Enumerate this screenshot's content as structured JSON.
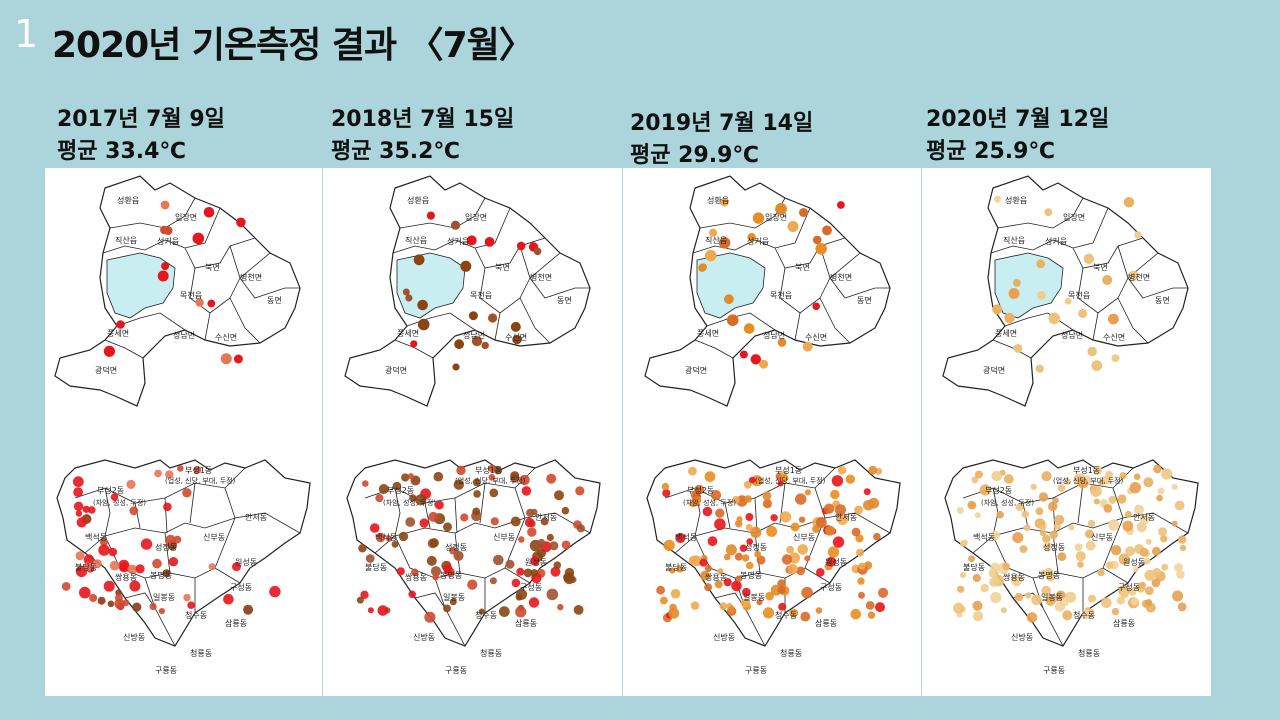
{
  "slide_number": "1",
  "title": "2020년 기온측정 결과 〈7월〉",
  "columns": [
    {
      "date": "2017년 7월 9일",
      "average": "평균 33.4℃",
      "palette": [
        "#e8151c",
        "#e8151c",
        "#d2492f",
        "#8b3a12",
        "#e8745a"
      ]
    },
    {
      "date": "2018년 7월 15일",
      "average": "평균 35.2℃",
      "palette": [
        "#8b4513",
        "#8b4513",
        "#a0522d",
        "#e8151c",
        "#d2492f"
      ]
    },
    {
      "date": "2019년 7월 14일",
      "average": "평균 29.9℃",
      "palette": [
        "#e08a2a",
        "#e88e20",
        "#d96a28",
        "#f0a850",
        "#e8151c"
      ]
    },
    {
      "date": "2020년 7월 12일",
      "average": "평균 25.9℃",
      "palette": [
        "#edc27a",
        "#f0cc8a",
        "#e8b060",
        "#f2d49c",
        "#e8a050"
      ]
    }
  ],
  "top_map_labels": [
    "성환읍",
    "입장면",
    "직산읍",
    "성거읍",
    "북면",
    "병천면",
    "목천읍",
    "동면",
    "풍세면",
    "성남면",
    "수신면",
    "광덕면"
  ],
  "bottom_map_labels": [
    "부성1동",
    "(업성, 신당, 부대, 두정)",
    "부성2동",
    "(차암, 성성, 두정)",
    "안서동",
    "백석동",
    "신부동",
    "성정동",
    "원성동",
    "불당동",
    "쌍용동",
    "봉명동",
    "일봉동",
    "구성동",
    "청수동",
    "삼룡동",
    "신방동",
    "청룡동",
    "구룡동"
  ]
}
